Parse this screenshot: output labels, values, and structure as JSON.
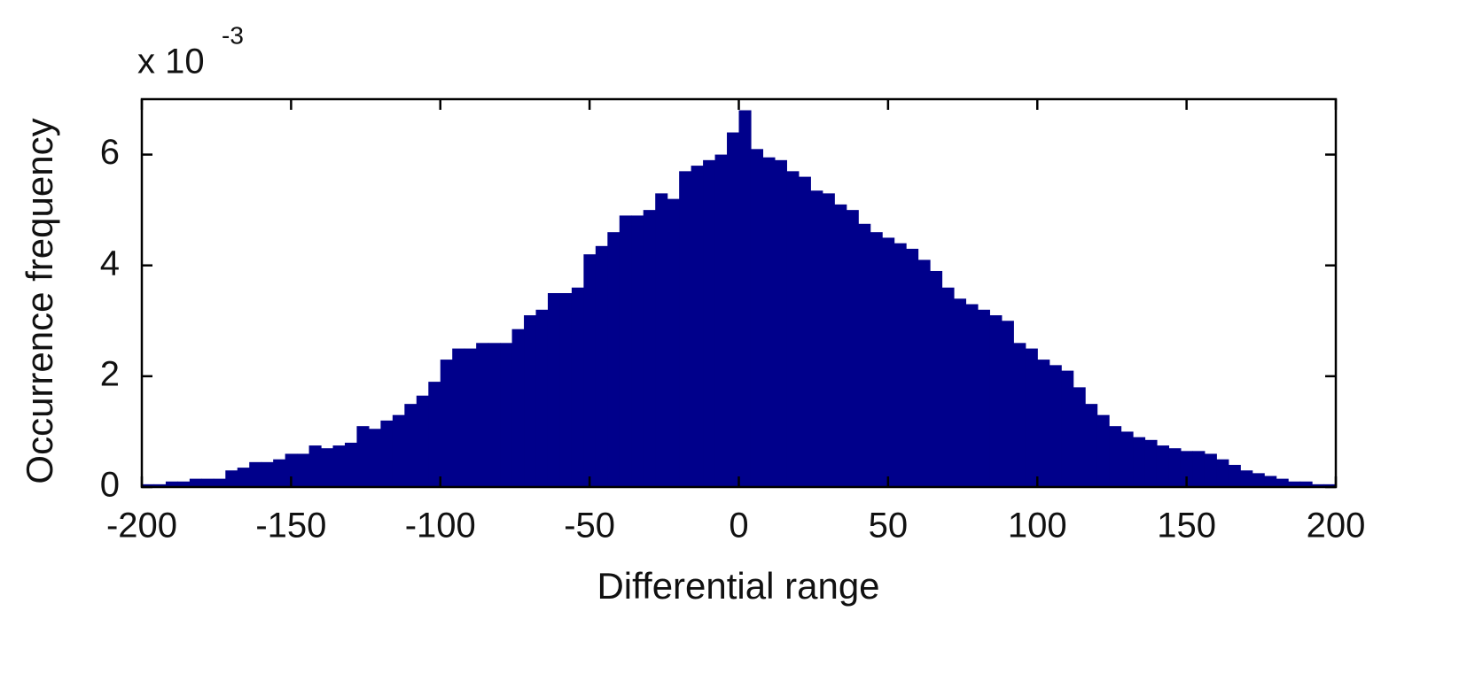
{
  "chart_data": {
    "type": "histogram",
    "xlabel": "Differential range",
    "ylabel": "Occurrence frequency",
    "y_scale_label": {
      "base": "x 10",
      "exponent": "-3"
    },
    "color": "#00008b",
    "bins": [
      -200,
      -196,
      -192,
      -188,
      -184,
      -180,
      -176,
      -172,
      -168,
      -164,
      -160,
      -156,
      -152,
      -148,
      -144,
      -140,
      -136,
      -132,
      -128,
      -124,
      -120,
      -116,
      -112,
      -108,
      -104,
      -100,
      -96,
      -92,
      -88,
      -84,
      -80,
      -76,
      -72,
      -68,
      -64,
      -60,
      -56,
      -52,
      -48,
      -44,
      -40,
      -36,
      -32,
      -28,
      -24,
      -20,
      -16,
      -12,
      -8,
      -4,
      0,
      4,
      8,
      12,
      16,
      20,
      24,
      28,
      32,
      36,
      40,
      44,
      48,
      52,
      56,
      60,
      64,
      68,
      72,
      76,
      80,
      84,
      88,
      92,
      96,
      100,
      104,
      108,
      112,
      116,
      120,
      124,
      128,
      132,
      136,
      140,
      144,
      148,
      152,
      156,
      160,
      164,
      168,
      172,
      176,
      180,
      184,
      188,
      192,
      196,
      200
    ],
    "values": [
      0.05,
      0.05,
      0.1,
      0.1,
      0.15,
      0.15,
      0.15,
      0.3,
      0.35,
      0.45,
      0.45,
      0.5,
      0.6,
      0.6,
      0.75,
      0.7,
      0.75,
      0.8,
      1.1,
      1.05,
      1.2,
      1.3,
      1.5,
      1.65,
      1.9,
      2.3,
      2.5,
      2.5,
      2.6,
      2.6,
      2.6,
      2.85,
      3.1,
      3.2,
      3.5,
      3.5,
      3.6,
      4.2,
      4.35,
      4.6,
      4.9,
      4.9,
      5.0,
      5.3,
      5.2,
      5.7,
      5.8,
      5.9,
      6.0,
      6.4,
      6.8,
      6.1,
      5.95,
      5.9,
      5.7,
      5.6,
      5.35,
      5.3,
      5.1,
      5.0,
      4.75,
      4.6,
      4.5,
      4.4,
      4.3,
      4.1,
      3.9,
      3.6,
      3.4,
      3.3,
      3.2,
      3.1,
      3.0,
      2.6,
      2.5,
      2.3,
      2.2,
      2.1,
      1.8,
      1.5,
      1.3,
      1.1,
      1.0,
      0.9,
      0.85,
      0.75,
      0.7,
      0.65,
      0.65,
      0.6,
      0.5,
      0.4,
      0.3,
      0.25,
      0.2,
      0.15,
      0.1,
      0.1,
      0.05,
      0.05
    ],
    "xlim": [
      -200,
      200
    ],
    "xticks": [
      -200,
      -150,
      -100,
      -50,
      0,
      50,
      100,
      150,
      200
    ],
    "ylim": [
      0,
      7
    ],
    "yticks": [
      0,
      2,
      4,
      6
    ]
  }
}
